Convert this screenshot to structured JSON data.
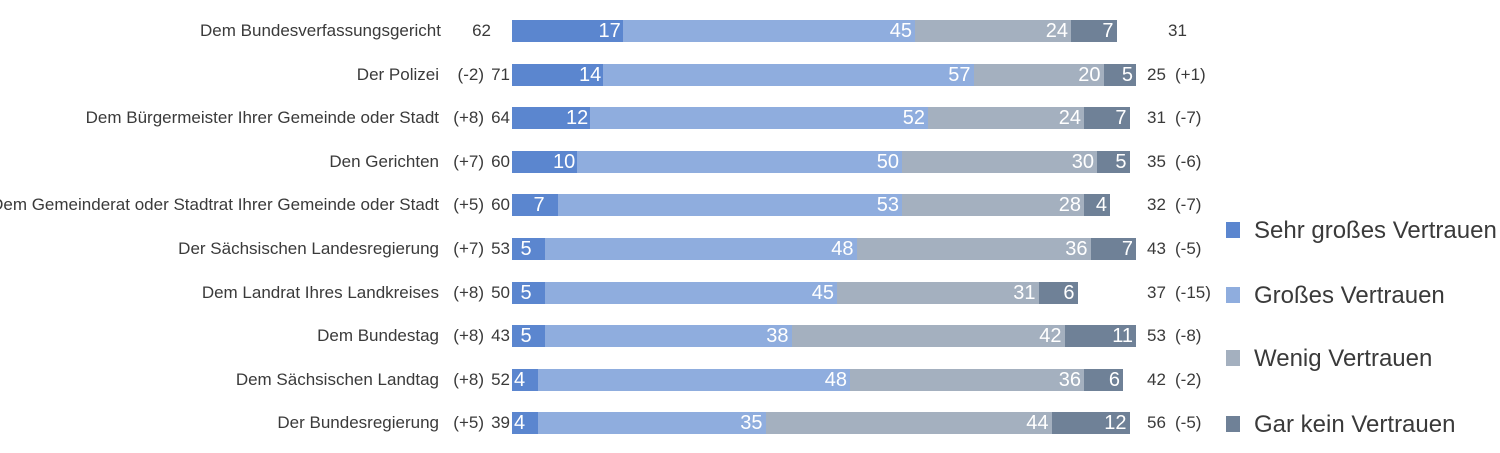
{
  "chart_data": {
    "type": "bar",
    "orientation": "horizontal",
    "stacked": true,
    "categories": [
      "Dem Bundesverfassungsgericht",
      "Der Polizei",
      "Dem Bürgermeister Ihrer Gemeinde oder Stadt",
      "Den Gerichten",
      "Dem Gemeinderat oder Stadtrat Ihrer Gemeinde oder Stadt",
      "Der Sächsischen Landesregierung",
      "Dem Landrat Ihres Landkreises",
      "Dem Bundestag",
      "Dem Sächsischen Landtag",
      "Der Bundesregierung"
    ],
    "series": [
      {
        "name": "Sehr großes Vertrauen",
        "color": "#5b86cf",
        "values": [
          17,
          14,
          12,
          10,
          7,
          5,
          5,
          5,
          4,
          4
        ]
      },
      {
        "name": "Großes Vertrauen",
        "color": "#8fadde",
        "values": [
          45,
          57,
          52,
          50,
          53,
          48,
          45,
          38,
          48,
          35
        ]
      },
      {
        "name": "Wenig Vertrauen",
        "color": "#a4b0bf",
        "values": [
          24,
          20,
          24,
          30,
          28,
          36,
          31,
          42,
          36,
          44
        ]
      },
      {
        "name": "Gar kein Vertrauen",
        "color": "#6f8197",
        "values": [
          7,
          5,
          7,
          5,
          4,
          7,
          6,
          11,
          6,
          12
        ]
      }
    ],
    "trust_total": [
      "62",
      "71",
      "64",
      "60",
      "60",
      "53",
      "50",
      "43",
      "52",
      "39"
    ],
    "trust_change": [
      "",
      "(-2)",
      "(+8)",
      "(+7)",
      "(+5)",
      "(+7)",
      "(+8)",
      "(+8)",
      "(+8)",
      "(+5)"
    ],
    "distrust_total": [
      "31",
      "25",
      "31",
      "35",
      "32",
      "43",
      "37",
      "53",
      "42",
      "56"
    ],
    "distrust_change": [
      "",
      "(+1)",
      "(-7)",
      "(-6)",
      "(-7)",
      "(-5)",
      "(-15)",
      "(-8)",
      "(-2)",
      "(-5)"
    ],
    "xlim": [
      0,
      100
    ],
    "legend_position": "right"
  }
}
